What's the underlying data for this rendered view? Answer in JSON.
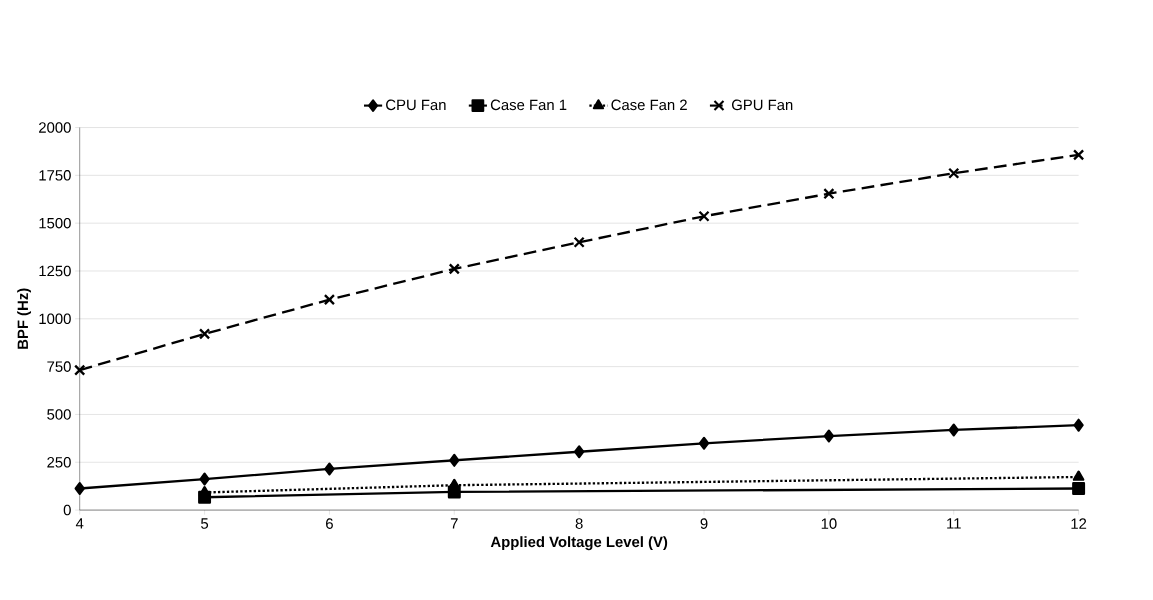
{
  "chart_data": {
    "type": "line",
    "xlabel": "Applied Voltage Level (V)",
    "ylabel": "BPF (Hz)",
    "xlim": [
      4,
      12
    ],
    "xticks": [
      4,
      5,
      6,
      7,
      8,
      9,
      10,
      11,
      12
    ],
    "ylim": [
      0,
      2000
    ],
    "yticks": [
      0,
      250,
      500,
      750,
      1000,
      1250,
      1500,
      1750,
      2000
    ],
    "grid": "y",
    "legend": "top",
    "series": [
      {
        "name": "CPU Fan",
        "color": "#000000",
        "marker": "diamond",
        "line_style": "solid",
        "x": [
          4,
          5,
          6,
          7,
          8,
          9,
          10,
          11,
          12
        ],
        "values": [
          113,
          162,
          215,
          260,
          305,
          349,
          387,
          419,
          444
        ]
      },
      {
        "name": "Case Fan 1",
        "color": "#000000",
        "marker": "square",
        "line_style": "solid",
        "x": [
          5,
          7,
          12
        ],
        "values": [
          67,
          95,
          113
        ]
      },
      {
        "name": "Case Fan 2",
        "color": "#000000",
        "marker": "triangle",
        "line_style": "dotted",
        "x": [
          5,
          7,
          12
        ],
        "values": [
          92,
          130,
          173
        ]
      },
      {
        "name": "GPU Fan",
        "color": "#000000",
        "marker": "cross",
        "line_style": "dashed",
        "x": [
          4,
          5,
          6,
          7,
          8,
          9,
          10,
          11,
          12
        ],
        "values": [
          732,
          921,
          1100,
          1261,
          1400,
          1536,
          1654,
          1761,
          1857
        ]
      }
    ]
  }
}
